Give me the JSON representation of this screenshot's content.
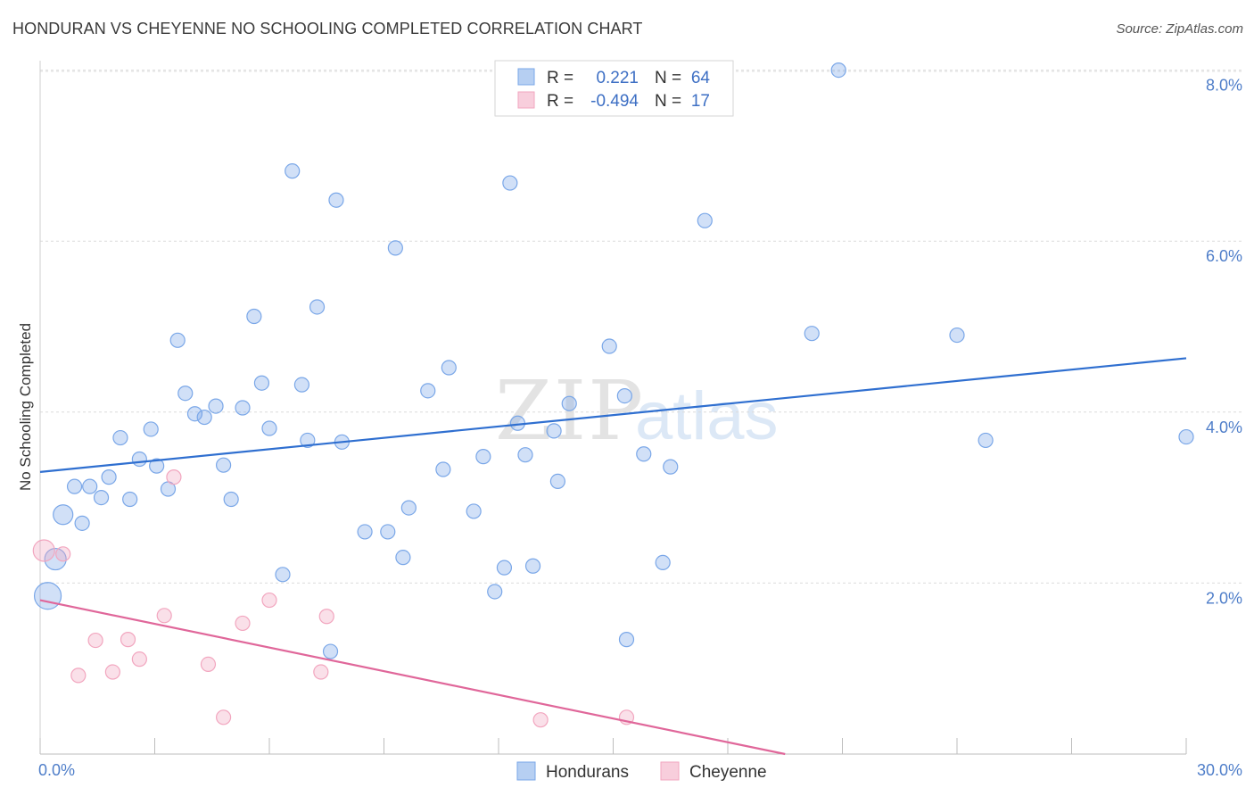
{
  "title": "HONDURAN VS CHEYENNE NO SCHOOLING COMPLETED CORRELATION CHART",
  "source": "Source: ZipAtlas.com",
  "chart_data": {
    "type": "scatter",
    "title": "HONDURAN VS CHEYENNE NO SCHOOLING COMPLETED CORRELATION CHART",
    "xlabel": "",
    "ylabel": "No Schooling Completed",
    "xlim": [
      0,
      30
    ],
    "ylim": [
      0,
      8.2
    ],
    "x_tick_labels": [
      "0.0%",
      "30.0%"
    ],
    "y_ticks": [
      2,
      4,
      6,
      8
    ],
    "y_tick_labels": [
      "2.0%",
      "4.0%",
      "6.0%",
      "8.0%"
    ],
    "grid": true,
    "watermark": "ZIPatlas",
    "series": [
      {
        "name": "Hondurans",
        "color": "#7aa7e8",
        "line_color": "#2f6fd0",
        "R": "0.221",
        "N": "64",
        "trend": [
          [
            0,
            3.3
          ],
          [
            30,
            4.63
          ]
        ],
        "points": [
          [
            0.2,
            1.85
          ],
          [
            0.4,
            2.28
          ],
          [
            0.6,
            2.8
          ],
          [
            0.9,
            3.13
          ],
          [
            1.1,
            2.7
          ],
          [
            1.3,
            3.13
          ],
          [
            1.6,
            3.0
          ],
          [
            1.8,
            3.24
          ],
          [
            2.1,
            3.7
          ],
          [
            2.35,
            2.98
          ],
          [
            2.6,
            3.45
          ],
          [
            2.9,
            3.8
          ],
          [
            3.05,
            3.37
          ],
          [
            3.35,
            3.1
          ],
          [
            3.6,
            4.84
          ],
          [
            3.8,
            4.22
          ],
          [
            4.05,
            3.98
          ],
          [
            4.3,
            3.94
          ],
          [
            4.6,
            4.07
          ],
          [
            4.8,
            3.38
          ],
          [
            5.0,
            2.98
          ],
          [
            5.3,
            4.05
          ],
          [
            5.6,
            5.12
          ],
          [
            5.8,
            4.34
          ],
          [
            6.0,
            3.81
          ],
          [
            6.35,
            2.1
          ],
          [
            6.6,
            6.82
          ],
          [
            6.85,
            4.32
          ],
          [
            7.0,
            3.67
          ],
          [
            7.25,
            5.23
          ],
          [
            7.6,
            1.2
          ],
          [
            7.75,
            6.48
          ],
          [
            7.9,
            3.65
          ],
          [
            8.5,
            2.6
          ],
          [
            9.1,
            2.6
          ],
          [
            9.3,
            5.92
          ],
          [
            9.5,
            2.3
          ],
          [
            9.65,
            2.88
          ],
          [
            10.15,
            4.25
          ],
          [
            10.55,
            3.33
          ],
          [
            10.7,
            4.52
          ],
          [
            11.35,
            2.84
          ],
          [
            11.6,
            3.48
          ],
          [
            11.9,
            1.9
          ],
          [
            12.15,
            2.18
          ],
          [
            12.3,
            6.68
          ],
          [
            12.5,
            3.87
          ],
          [
            12.7,
            3.5
          ],
          [
            12.9,
            2.2
          ],
          [
            13.45,
            3.78
          ],
          [
            13.55,
            3.19
          ],
          [
            13.85,
            4.1
          ],
          [
            14.9,
            4.77
          ],
          [
            15.3,
            4.19
          ],
          [
            15.35,
            1.34
          ],
          [
            15.8,
            3.51
          ],
          [
            16.3,
            2.24
          ],
          [
            16.5,
            3.36
          ],
          [
            17.4,
            6.24
          ],
          [
            20.2,
            4.92
          ],
          [
            20.9,
            8.0
          ],
          [
            24.0,
            4.9
          ],
          [
            24.75,
            3.67
          ],
          [
            30.0,
            3.71
          ]
        ]
      },
      {
        "name": "Cheyenne",
        "color": "#f2a6bf",
        "line_color": "#e0679a",
        "R": "-0.494",
        "N": "17",
        "trend": [
          [
            0,
            1.8
          ],
          [
            19.5,
            0.0
          ]
        ],
        "points": [
          [
            0.1,
            2.38
          ],
          [
            0.6,
            2.34
          ],
          [
            1.0,
            0.92
          ],
          [
            1.45,
            1.33
          ],
          [
            1.9,
            0.96
          ],
          [
            2.3,
            1.34
          ],
          [
            2.6,
            1.11
          ],
          [
            3.25,
            1.62
          ],
          [
            3.5,
            3.24
          ],
          [
            4.4,
            1.05
          ],
          [
            4.8,
            0.43
          ],
          [
            5.3,
            1.53
          ],
          [
            6.0,
            1.8
          ],
          [
            7.35,
            0.96
          ],
          [
            7.5,
            1.61
          ],
          [
            13.1,
            0.4
          ],
          [
            15.35,
            0.43
          ]
        ]
      }
    ],
    "legend_position": "top-center"
  },
  "legend": {
    "r_label": "R =",
    "n_label": "N =",
    "rows": [
      {
        "r": "0.221",
        "n": "64"
      },
      {
        "r": "-0.494",
        "n": "17"
      }
    ]
  },
  "bottom_legend": [
    "Hondurans",
    "Cheyenne"
  ]
}
